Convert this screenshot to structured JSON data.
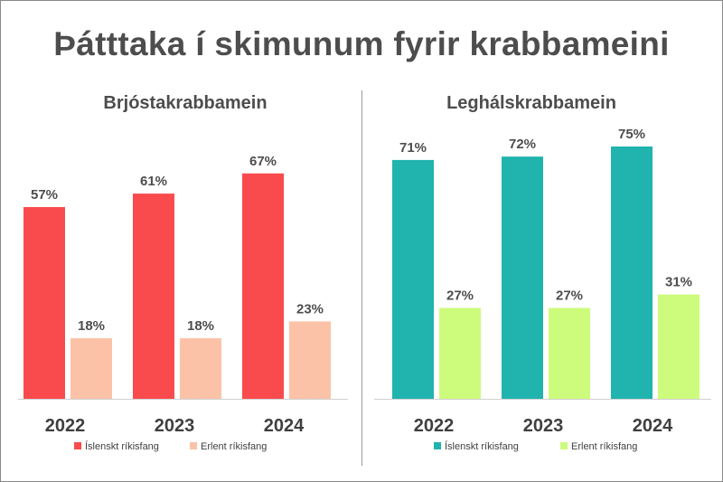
{
  "title": "Þátttaka í skimunum fyrir krabbameini",
  "chart_data": [
    {
      "type": "bar",
      "title": "Brjóstakrabbamein",
      "categories": [
        "2022",
        "2023",
        "2024"
      ],
      "series": [
        {
          "name": "Íslenskt ríkisfang",
          "values": [
            57,
            61,
            67
          ],
          "color": "#f94b4d"
        },
        {
          "name": "Erlent ríkisfang",
          "values": [
            18,
            18,
            23
          ],
          "color": "#fcc2a8"
        }
      ],
      "value_suffix": "%",
      "ylim": [
        0,
        100
      ],
      "grid": false,
      "legend": "bottom"
    },
    {
      "type": "bar",
      "title": "Leghálskrabbamein",
      "categories": [
        "2022",
        "2023",
        "2024"
      ],
      "series": [
        {
          "name": "Íslenskt ríkisfang",
          "values": [
            71,
            72,
            75
          ],
          "color": "#21b3ae"
        },
        {
          "name": "Erlent ríkisfang",
          "values": [
            27,
            27,
            31
          ],
          "color": "#cdfb7c"
        }
      ],
      "value_suffix": "%",
      "ylim": [
        0,
        100
      ],
      "grid": false,
      "legend": "bottom"
    }
  ]
}
